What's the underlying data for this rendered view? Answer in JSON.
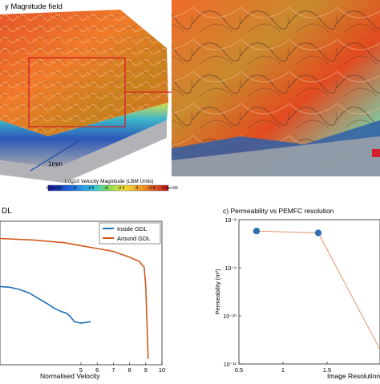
{
  "panel_a": {
    "title": "y Magnitude field",
    "scale_label": "1mm",
    "colorbar_title": "Log10 Velocity Magnitude (LBM Units)",
    "colorbar_ticks": [
      "-6.0e+00",
      "-5",
      "-4.5",
      "-4",
      "-3.5",
      "-3",
      "-2.5",
      "-2.0e+00"
    ]
  },
  "panel_b": {
    "title": "DL",
    "xlabel": "Normalised Velocity",
    "legend": [
      "Inside GDL",
      "Around GDL"
    ]
  },
  "panel_c": {
    "title": "c) Permeability vs PEMFC resolution",
    "xlabel": "Image Resolution",
    "ylabel": "Permeability (m²)"
  },
  "colors": {
    "inside_gdl": "#1f6fb5",
    "around_gdl": "#d2581f",
    "marker": "#2f6fb3",
    "callout": "#d3202a"
  },
  "chart_data": [
    {
      "type": "line",
      "panel": "b",
      "xlabel": "Normalised Velocity",
      "xlim": [
        0,
        10
      ],
      "xticks": [
        5,
        6,
        7,
        8,
        9,
        10
      ],
      "series": [
        {
          "name": "Inside GDL",
          "x": [
            0.0,
            0.6,
            1.2,
            1.8,
            2.4,
            3.0,
            3.4,
            3.8,
            4.1,
            4.3,
            4.6,
            5.0,
            5.6
          ],
          "y": [
            0.455,
            0.46,
            0.475,
            0.5,
            0.54,
            0.58,
            0.61,
            0.63,
            0.64,
            0.66,
            0.7,
            0.71,
            0.7
          ]
        },
        {
          "name": "Around GDL",
          "x": [
            0.0,
            1.0,
            2.0,
            3.0,
            4.0,
            5.0,
            6.0,
            7.0,
            7.5,
            8.0,
            8.6,
            8.9,
            9.0,
            9.05,
            9.1,
            9.15
          ],
          "y": [
            0.12,
            0.125,
            0.13,
            0.14,
            0.15,
            0.17,
            0.19,
            0.21,
            0.23,
            0.25,
            0.28,
            0.32,
            0.45,
            0.62,
            0.78,
            0.96
          ]
        }
      ]
    },
    {
      "type": "scatter",
      "panel": "c",
      "title": "c) Permeability vs PEMFC resolution",
      "xlabel": "Image Resolution",
      "ylabel": "Permeability (m²)",
      "xlim": [
        0.5,
        2.1
      ],
      "xticks": [
        0.5,
        1,
        1.5
      ],
      "xticklabels": [
        "0.5",
        "1",
        "1.5"
      ],
      "y_scale": "log",
      "ylim": [
        1e-11,
        1e-08
      ],
      "yticks": [
        -8,
        -9,
        -10,
        -11
      ],
      "yticklabels": [
        "10⁻⁸",
        "10⁻⁹",
        "10⁻¹⁰",
        "10⁻¹¹"
      ],
      "series": [
        {
          "name": "",
          "x": [
            0.7,
            1.4,
            2.1
          ],
          "y": [
            5.8e-09,
            5.3e-09,
            2e-11
          ]
        }
      ]
    }
  ]
}
